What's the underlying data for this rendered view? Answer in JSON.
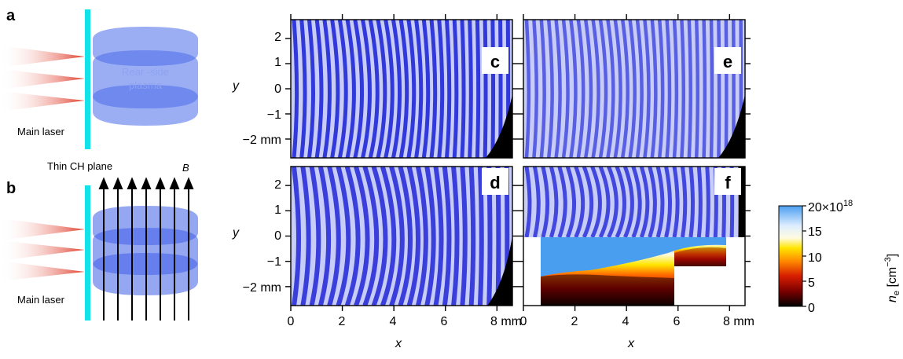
{
  "panels": {
    "a": {
      "letter": "a",
      "plasma_label_line1": "Rear -side",
      "plasma_label_line2": "plasma",
      "laser_label": "Main laser",
      "plane_label": "Thin CH plane"
    },
    "b": {
      "letter": "b",
      "field_label": "B",
      "laser_label": "Main laser"
    },
    "c": {
      "letter": "c"
    },
    "d": {
      "letter": "d"
    },
    "e": {
      "letter": "e"
    },
    "f": {
      "letter": "f"
    }
  },
  "axes": {
    "xlabel": "x",
    "ylabel": "y",
    "x_ticks": [
      "0",
      "2",
      "4",
      "6",
      "8 mm"
    ],
    "x_tick_values": [
      0,
      2,
      4,
      6,
      8
    ],
    "x_range": [
      0,
      8.6
    ],
    "y_ticks": [
      "2",
      "1",
      "0",
      "−1",
      "−2 mm"
    ],
    "y_tick_values": [
      2,
      1,
      0,
      -1,
      -2
    ],
    "y_range": [
      -2.75,
      2.75
    ]
  },
  "colorbar": {
    "label_main": "n",
    "label_sub": "e",
    "label_unit": " [cm",
    "label_exp": "−3",
    "label_close": "]",
    "top_label": "20×10",
    "top_exp": "18",
    "ticks": [
      "20×10",
      "15",
      "10",
      "5",
      "0"
    ],
    "tick_values": [
      20,
      15,
      10,
      5,
      0
    ],
    "range": [
      0,
      20
    ],
    "colors": [
      "#000000",
      "#7a0000",
      "#d61d00",
      "#ff8a00",
      "#ffe600",
      "#fffbe0",
      "#dfeeff",
      "#4a9ef0"
    ]
  },
  "colors": {
    "fringe": "#2a30d8",
    "fringe_light": "#c8cdf8",
    "target": "#12e3e8",
    "plasma": "#4060e8",
    "laser": "#e84a3a"
  }
}
